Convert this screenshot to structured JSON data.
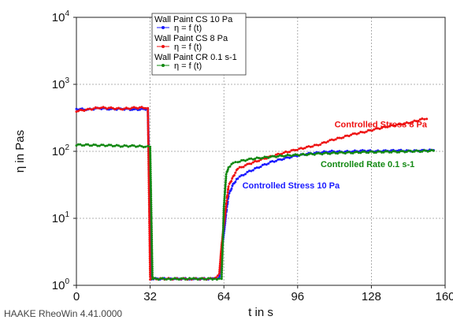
{
  "footer": "HAAKE RheoWin 4.41.0000",
  "chart_data": {
    "type": "scatter",
    "xlabel": "t in s",
    "ylabel": "η in Pas",
    "xlim": [
      0,
      160
    ],
    "ylim": [
      1,
      10000
    ],
    "yscale": "log",
    "grid": true,
    "x_ticks": [
      "0",
      "32",
      "64",
      "96",
      "128",
      "160"
    ],
    "y_ticks": [
      {
        "base": "10",
        "exp": "0"
      },
      {
        "base": "10",
        "exp": "1"
      },
      {
        "base": "10",
        "exp": "2"
      },
      {
        "base": "10",
        "exp": "3"
      },
      {
        "base": "10",
        "exp": "4"
      }
    ],
    "legend": {
      "position": "top-center",
      "entries": [
        {
          "title": "Wall Paint CS 10 Pa",
          "marker_label": "η = f (t)",
          "color": "#1a1aff"
        },
        {
          "title": "Wall Paint CS 8 Pa",
          "marker_label": "η = f (t)",
          "color": "#ee1111"
        },
        {
          "title": "Wall Paint CR 0.1 s-1",
          "marker_label": "η = f (t)",
          "color": "#118811"
        }
      ]
    },
    "annotations": [
      {
        "text": "Controlled Stress 8 Pa",
        "color": "#ee1111",
        "x": 112,
        "y": 230
      },
      {
        "text": "Controlled Rate 0.1 s-1",
        "color": "#118811",
        "x": 106,
        "y": 58
      },
      {
        "text": "Controlled Stress 10 Pa",
        "color": "#1a1aff",
        "x": 72,
        "y": 28
      }
    ],
    "series": [
      {
        "color": "#1a1aff",
        "points": [
          [
            0,
            430
          ],
          [
            5,
            420
          ],
          [
            10,
            440
          ],
          [
            15,
            425
          ],
          [
            20,
            430
          ],
          [
            25,
            420
          ],
          [
            30,
            425
          ],
          [
            31,
            420
          ],
          [
            32.5,
            1.25
          ],
          [
            40,
            1.25
          ],
          [
            50,
            1.25
          ],
          [
            60,
            1.25
          ],
          [
            62,
            1.3
          ],
          [
            63,
            3
          ],
          [
            64,
            6
          ],
          [
            65,
            12
          ],
          [
            66,
            22
          ],
          [
            68,
            32
          ],
          [
            70,
            40
          ],
          [
            75,
            50
          ],
          [
            80,
            60
          ],
          [
            85,
            70
          ],
          [
            90,
            78
          ],
          [
            95,
            85
          ],
          [
            100,
            92
          ],
          [
            105,
            95
          ],
          [
            110,
            100
          ],
          [
            115,
            98
          ],
          [
            120,
            100
          ],
          [
            125,
            102
          ],
          [
            130,
            100
          ],
          [
            135,
            102
          ],
          [
            140,
            103
          ],
          [
            145,
            101
          ],
          [
            150,
            103
          ],
          [
            155,
            104
          ]
        ]
      },
      {
        "color": "#ee1111",
        "points": [
          [
            0,
            400
          ],
          [
            5,
            420
          ],
          [
            10,
            450
          ],
          [
            15,
            440
          ],
          [
            20,
            430
          ],
          [
            25,
            445
          ],
          [
            30,
            450
          ],
          [
            31,
            440
          ],
          [
            32,
            1.25
          ],
          [
            40,
            1.25
          ],
          [
            50,
            1.25
          ],
          [
            60,
            1.25
          ],
          [
            62,
            1.5
          ],
          [
            63,
            4
          ],
          [
            64,
            8
          ],
          [
            65,
            16
          ],
          [
            66,
            30
          ],
          [
            68,
            42
          ],
          [
            70,
            55
          ],
          [
            75,
            65
          ],
          [
            80,
            75
          ],
          [
            85,
            85
          ],
          [
            90,
            95
          ],
          [
            95,
            105
          ],
          [
            100,
            115
          ],
          [
            105,
            125
          ],
          [
            110,
            145
          ],
          [
            115,
            160
          ],
          [
            120,
            180
          ],
          [
            125,
            195
          ],
          [
            130,
            215
          ],
          [
            135,
            235
          ],
          [
            140,
            250
          ],
          [
            145,
            270
          ],
          [
            150,
            300
          ],
          [
            152,
            305
          ]
        ]
      },
      {
        "color": "#118811",
        "points": [
          [
            0,
            125
          ],
          [
            5,
            124
          ],
          [
            10,
            123
          ],
          [
            15,
            122
          ],
          [
            20,
            120
          ],
          [
            25,
            120
          ],
          [
            30,
            118
          ],
          [
            32,
            117
          ],
          [
            33,
            1.25
          ],
          [
            40,
            1.25
          ],
          [
            50,
            1.25
          ],
          [
            60,
            1.25
          ],
          [
            63,
            1.25
          ],
          [
            64,
            15
          ],
          [
            65,
            45
          ],
          [
            66,
            58
          ],
          [
            68,
            66
          ],
          [
            70,
            70
          ],
          [
            75,
            76
          ],
          [
            80,
            80
          ],
          [
            85,
            83
          ],
          [
            90,
            86
          ],
          [
            95,
            88
          ],
          [
            100,
            90
          ],
          [
            105,
            92
          ],
          [
            110,
            94
          ],
          [
            115,
            95
          ],
          [
            120,
            96
          ],
          [
            125,
            97
          ],
          [
            130,
            98
          ],
          [
            135,
            98
          ],
          [
            140,
            99
          ],
          [
            145,
            100
          ],
          [
            150,
            101
          ],
          [
            155,
            102
          ]
        ]
      }
    ]
  }
}
